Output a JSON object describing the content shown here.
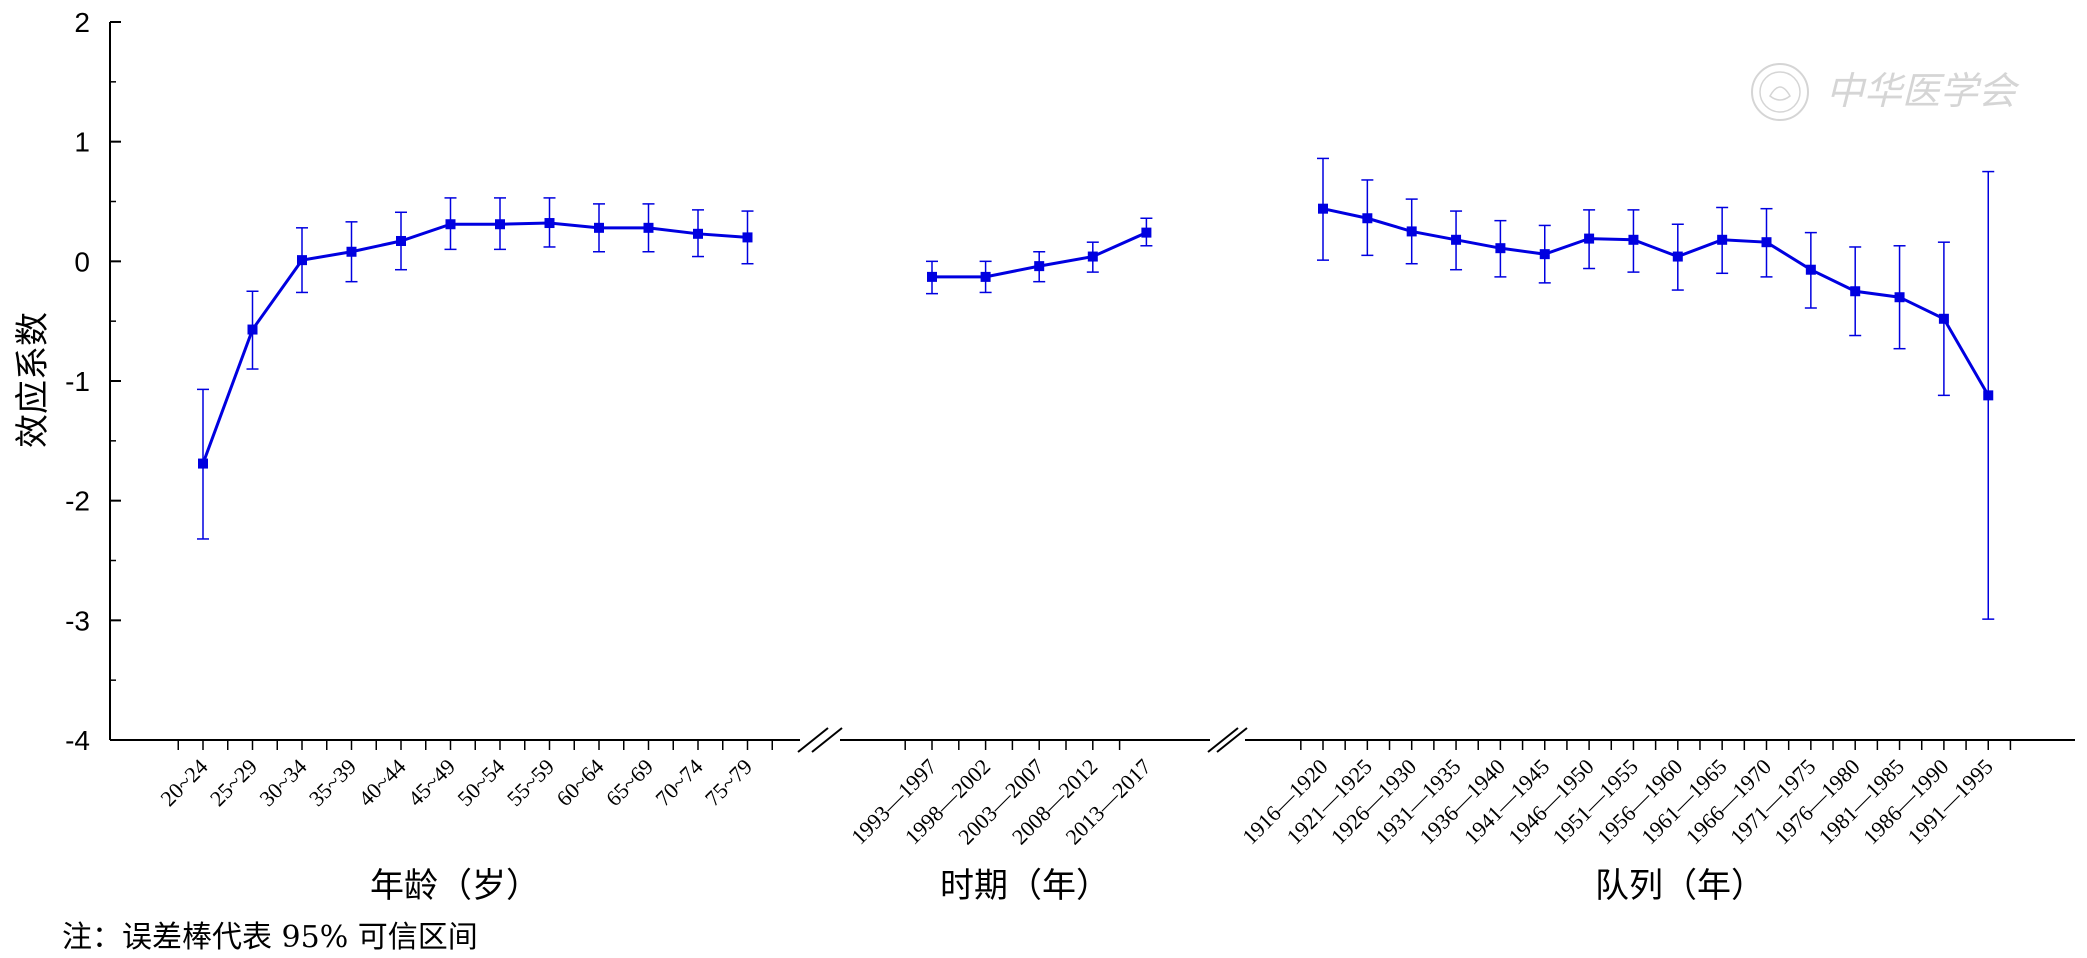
{
  "chart_data": {
    "type": "line",
    "ylabel": "效应系数",
    "ylim": [
      -4,
      2
    ],
    "yticks": [
      2,
      1,
      0,
      -1,
      -2,
      -3,
      -4
    ],
    "yticklabels": [
      "2",
      "1",
      "0",
      "-1",
      "-2",
      "-3",
      "-4"
    ],
    "series_color": "#0000e0",
    "grid": false,
    "panels": [
      {
        "xlabel": "年龄（岁）",
        "categories": [
          "20~24",
          "25~29",
          "30~34",
          "35~39",
          "40~44",
          "45~49",
          "50~54",
          "55~59",
          "60~64",
          "65~69",
          "70~74",
          "75~79"
        ],
        "values": [
          -1.69,
          -0.57,
          0.01,
          0.08,
          0.17,
          0.31,
          0.31,
          0.32,
          0.28,
          0.28,
          0.23,
          0.2
        ],
        "lower": [
          -2.32,
          -0.9,
          -0.26,
          -0.17,
          -0.07,
          0.1,
          0.1,
          0.12,
          0.08,
          0.08,
          0.04,
          -0.02
        ],
        "upper": [
          -1.07,
          -0.25,
          0.28,
          0.33,
          0.41,
          0.53,
          0.53,
          0.53,
          0.48,
          0.48,
          0.43,
          0.42
        ]
      },
      {
        "xlabel": "时期（年）",
        "categories": [
          "1993—1997",
          "1998—2002",
          "2003—2007",
          "2008—2012",
          "2013—2017"
        ],
        "values": [
          -0.13,
          -0.13,
          -0.04,
          0.04,
          0.24
        ],
        "lower": [
          -0.27,
          -0.26,
          -0.17,
          -0.09,
          0.13
        ],
        "upper": [
          0.0,
          0.0,
          0.08,
          0.16,
          0.36
        ]
      },
      {
        "xlabel": "队列（年）",
        "categories": [
          "1916—1920",
          "1921—1925",
          "1926—1930",
          "1931—1935",
          "1936—1940",
          "1941—1945",
          "1946—1950",
          "1951—1955",
          "1956—1960",
          "1961—1965",
          "1966—1970",
          "1971—1975",
          "1976—1980",
          "1981—1985",
          "1986—1990",
          "1991—1995"
        ],
        "values": [
          0.44,
          0.36,
          0.25,
          0.18,
          0.11,
          0.06,
          0.19,
          0.18,
          0.04,
          0.18,
          0.16,
          -0.07,
          -0.25,
          -0.3,
          -0.48,
          -1.12
        ],
        "lower": [
          0.01,
          0.05,
          -0.02,
          -0.07,
          -0.13,
          -0.18,
          -0.06,
          -0.09,
          -0.24,
          -0.1,
          -0.13,
          -0.39,
          -0.62,
          -0.73,
          -1.12,
          -2.99
        ],
        "upper": [
          0.86,
          0.68,
          0.52,
          0.42,
          0.34,
          0.3,
          0.43,
          0.43,
          0.31,
          0.45,
          0.44,
          0.24,
          0.12,
          0.13,
          0.16,
          0.75
        ]
      }
    ]
  },
  "note": "注：误差棒代表 95% 可信区间",
  "watermark": "中华医学会"
}
